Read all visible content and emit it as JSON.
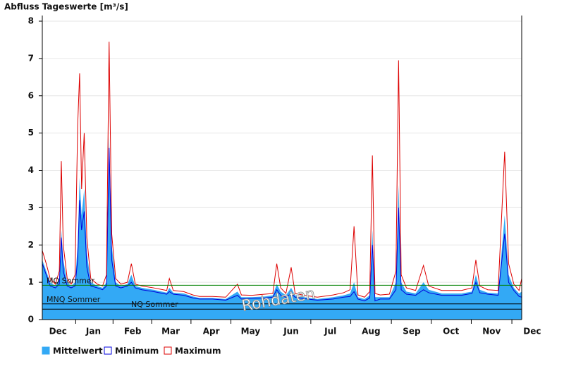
{
  "chart_data": {
    "type": "hydrograph",
    "title": "Abfluss Tageswerte [m³/s]",
    "annotation": "Rohdaten",
    "x": [
      0,
      3,
      6,
      10,
      13,
      14.5,
      16,
      19,
      22,
      25,
      27,
      28.5,
      30,
      32,
      34,
      37,
      42,
      46,
      49,
      51,
      53,
      56,
      60,
      65,
      68,
      71,
      76,
      85,
      95,
      97,
      100,
      108,
      115,
      120,
      130,
      140,
      149,
      152,
      160,
      170,
      176,
      179,
      182,
      186,
      190,
      193,
      200,
      210,
      222,
      230,
      235,
      238,
      241,
      246,
      250,
      252,
      254,
      258,
      265,
      270,
      272,
      274,
      278,
      285,
      291,
      295,
      305,
      320,
      328,
      331,
      334,
      340,
      348,
      353,
      356,
      360,
      364,
      366
    ],
    "series": [
      {
        "name": "Mittelwert",
        "color": "#33a9f5",
        "values": [
          1.6,
          1.3,
          1.0,
          0.9,
          1.1,
          2.4,
          1.6,
          1.0,
          0.9,
          1.0,
          2.0,
          3.8,
          2.8,
          3.5,
          1.8,
          1.0,
          0.9,
          0.85,
          1.0,
          4.9,
          2.0,
          1.0,
          0.9,
          0.95,
          1.2,
          0.9,
          0.85,
          0.8,
          0.72,
          0.85,
          0.72,
          0.7,
          0.62,
          0.58,
          0.58,
          0.55,
          0.75,
          0.6,
          0.6,
          0.62,
          0.65,
          0.95,
          0.75,
          0.65,
          0.85,
          0.65,
          0.6,
          0.55,
          0.6,
          0.65,
          0.7,
          1.0,
          0.6,
          0.55,
          0.65,
          2.4,
          0.6,
          0.6,
          0.6,
          1.0,
          3.6,
          1.0,
          0.75,
          0.7,
          1.0,
          0.8,
          0.7,
          0.7,
          0.75,
          1.2,
          0.8,
          0.72,
          0.7,
          2.8,
          1.2,
          0.85,
          0.7,
          0.75
        ]
      },
      {
        "name": "Minimum",
        "color": "#0000dd",
        "values": [
          1.5,
          1.2,
          0.9,
          0.85,
          0.95,
          2.2,
          1.3,
          0.9,
          0.85,
          0.9,
          1.6,
          3.2,
          2.4,
          2.9,
          1.4,
          0.9,
          0.85,
          0.8,
          0.9,
          4.6,
          1.6,
          0.9,
          0.85,
          0.9,
          1.0,
          0.85,
          0.8,
          0.75,
          0.68,
          0.75,
          0.68,
          0.65,
          0.58,
          0.55,
          0.55,
          0.52,
          0.65,
          0.55,
          0.57,
          0.58,
          0.6,
          0.8,
          0.65,
          0.6,
          0.7,
          0.6,
          0.56,
          0.52,
          0.55,
          0.6,
          0.62,
          0.75,
          0.55,
          0.5,
          0.58,
          2.0,
          0.5,
          0.55,
          0.55,
          0.8,
          3.0,
          0.8,
          0.68,
          0.65,
          0.8,
          0.72,
          0.65,
          0.65,
          0.7,
          1.0,
          0.72,
          0.68,
          0.65,
          2.3,
          1.0,
          0.78,
          0.62,
          0.6
        ]
      },
      {
        "name": "Maximum",
        "color": "#dd0000",
        "values": [
          1.85,
          1.5,
          1.1,
          0.95,
          1.3,
          4.25,
          2.0,
          1.1,
          0.95,
          1.2,
          5.2,
          6.6,
          3.5,
          5.0,
          2.2,
          1.1,
          0.95,
          0.9,
          1.2,
          7.45,
          2.3,
          1.1,
          0.95,
          1.0,
          1.5,
          0.95,
          0.9,
          0.85,
          0.78,
          1.1,
          0.78,
          0.75,
          0.66,
          0.62,
          0.62,
          0.6,
          0.95,
          0.66,
          0.65,
          0.68,
          0.7,
          1.5,
          0.85,
          0.7,
          1.4,
          0.7,
          0.65,
          0.6,
          0.66,
          0.72,
          0.8,
          2.5,
          0.66,
          0.6,
          0.75,
          4.4,
          0.7,
          0.66,
          0.68,
          1.3,
          6.95,
          1.2,
          0.85,
          0.78,
          1.45,
          0.9,
          0.78,
          0.78,
          0.85,
          1.6,
          0.9,
          0.8,
          0.78,
          4.5,
          1.5,
          0.95,
          0.78,
          1.1
        ]
      }
    ],
    "reference_lines": [
      {
        "label": "MQ Sommer",
        "value": 0.92,
        "color": "#008000"
      },
      {
        "label": "MNQ Sommer",
        "value": 0.42,
        "color": "#000000"
      },
      {
        "label": "NQ Sommer",
        "value": 0.28,
        "color": "#000000"
      }
    ],
    "xlim": [
      0,
      366
    ],
    "xticks": [
      {
        "value": 12,
        "label": "Dec"
      },
      {
        "value": 39,
        "label": "Jan"
      },
      {
        "value": 69,
        "label": "Feb"
      },
      {
        "value": 98,
        "label": "Mar"
      },
      {
        "value": 129,
        "label": "Apr"
      },
      {
        "value": 159,
        "label": "May"
      },
      {
        "value": 190,
        "label": "Jun"
      },
      {
        "value": 220,
        "label": "Jul"
      },
      {
        "value": 251,
        "label": "Aug"
      },
      {
        "value": 282,
        "label": "Sep"
      },
      {
        "value": 312,
        "label": "Oct"
      },
      {
        "value": 343,
        "label": "Nov"
      },
      {
        "value": 374,
        "label": "Dec"
      }
    ],
    "ylim": [
      0,
      8
    ],
    "yticks": [
      0,
      1,
      2,
      3,
      4,
      5,
      6,
      7,
      8
    ],
    "grid": true
  }
}
